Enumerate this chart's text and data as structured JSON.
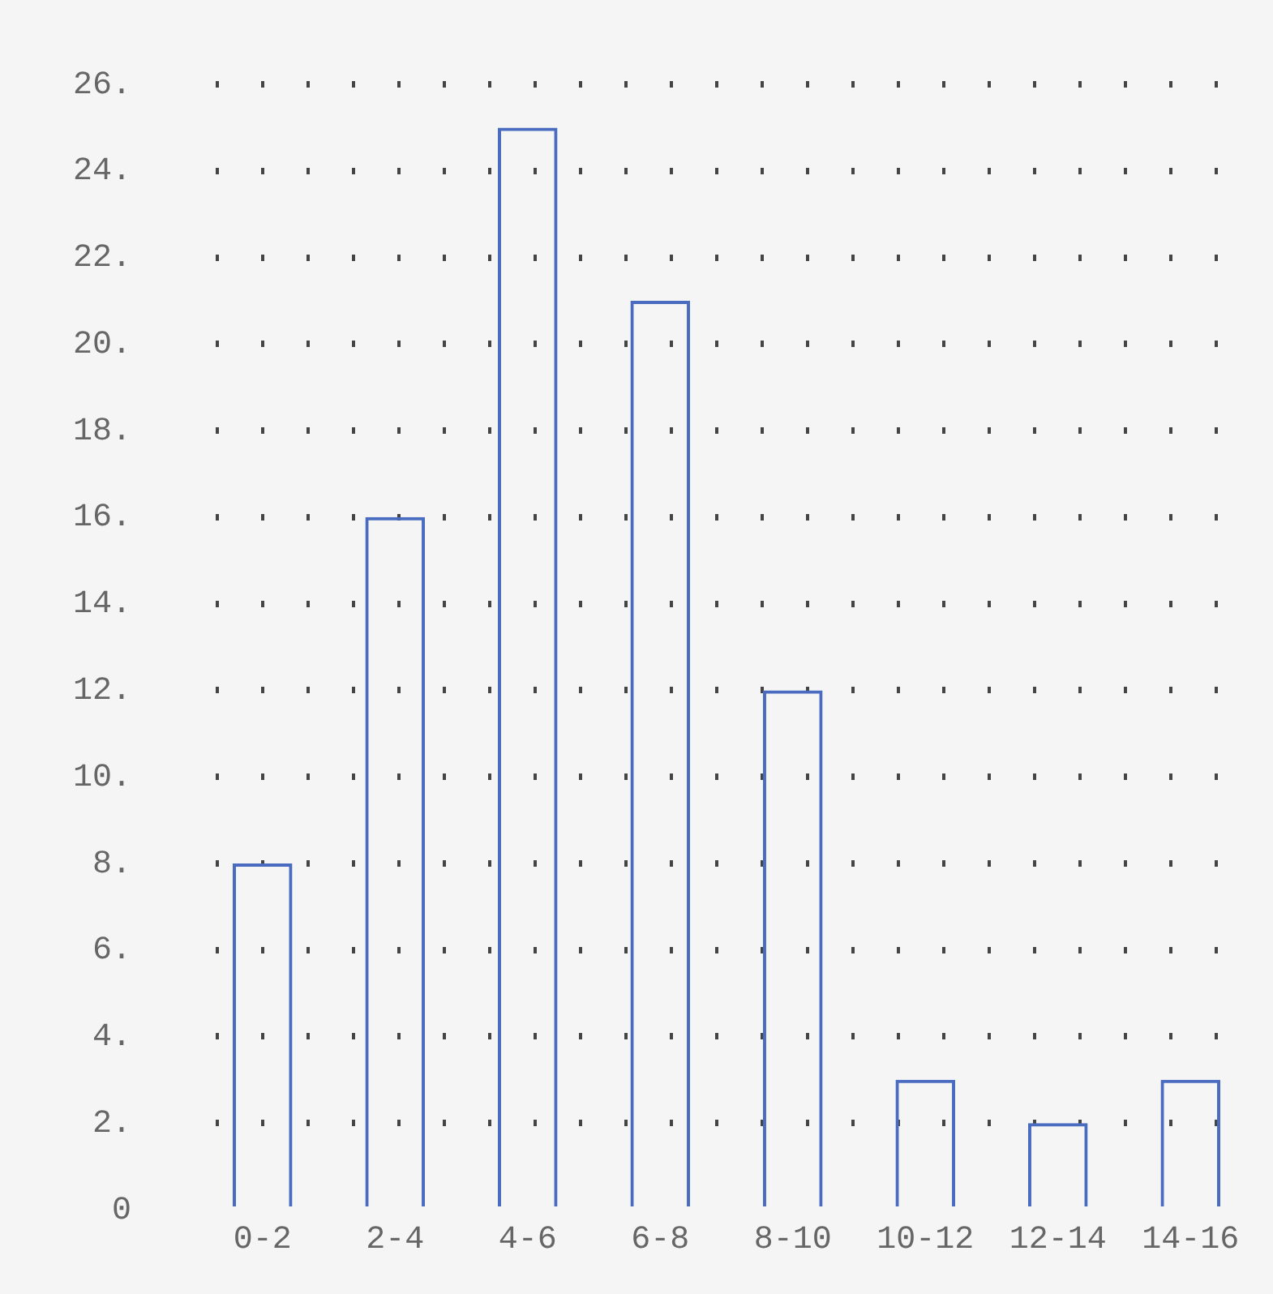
{
  "chart_data": {
    "type": "bar",
    "categories": [
      "0-2",
      "2-4",
      "4-6",
      "6-8",
      "8-10",
      "10-12",
      "12-14",
      "14-16"
    ],
    "values": [
      8,
      16,
      25,
      21,
      12,
      3,
      2,
      3
    ],
    "color": "#4a6cc0",
    "ylim": [
      0,
      26
    ],
    "yticks": [
      {
        "value": 0,
        "label": "0"
      },
      {
        "value": 2,
        "label": "2."
      },
      {
        "value": 4,
        "label": "4."
      },
      {
        "value": 6,
        "label": "6."
      },
      {
        "value": 8,
        "label": "8."
      },
      {
        "value": 10,
        "label": "10."
      },
      {
        "value": 12,
        "label": "12."
      },
      {
        "value": 14,
        "label": "14."
      },
      {
        "value": 16,
        "label": "16."
      },
      {
        "value": 18,
        "label": "18."
      },
      {
        "value": 20,
        "label": "20."
      },
      {
        "value": 22,
        "label": "22."
      },
      {
        "value": 24,
        "label": "24."
      },
      {
        "value": 26,
        "label": "26."
      }
    ],
    "grid": "y"
  }
}
